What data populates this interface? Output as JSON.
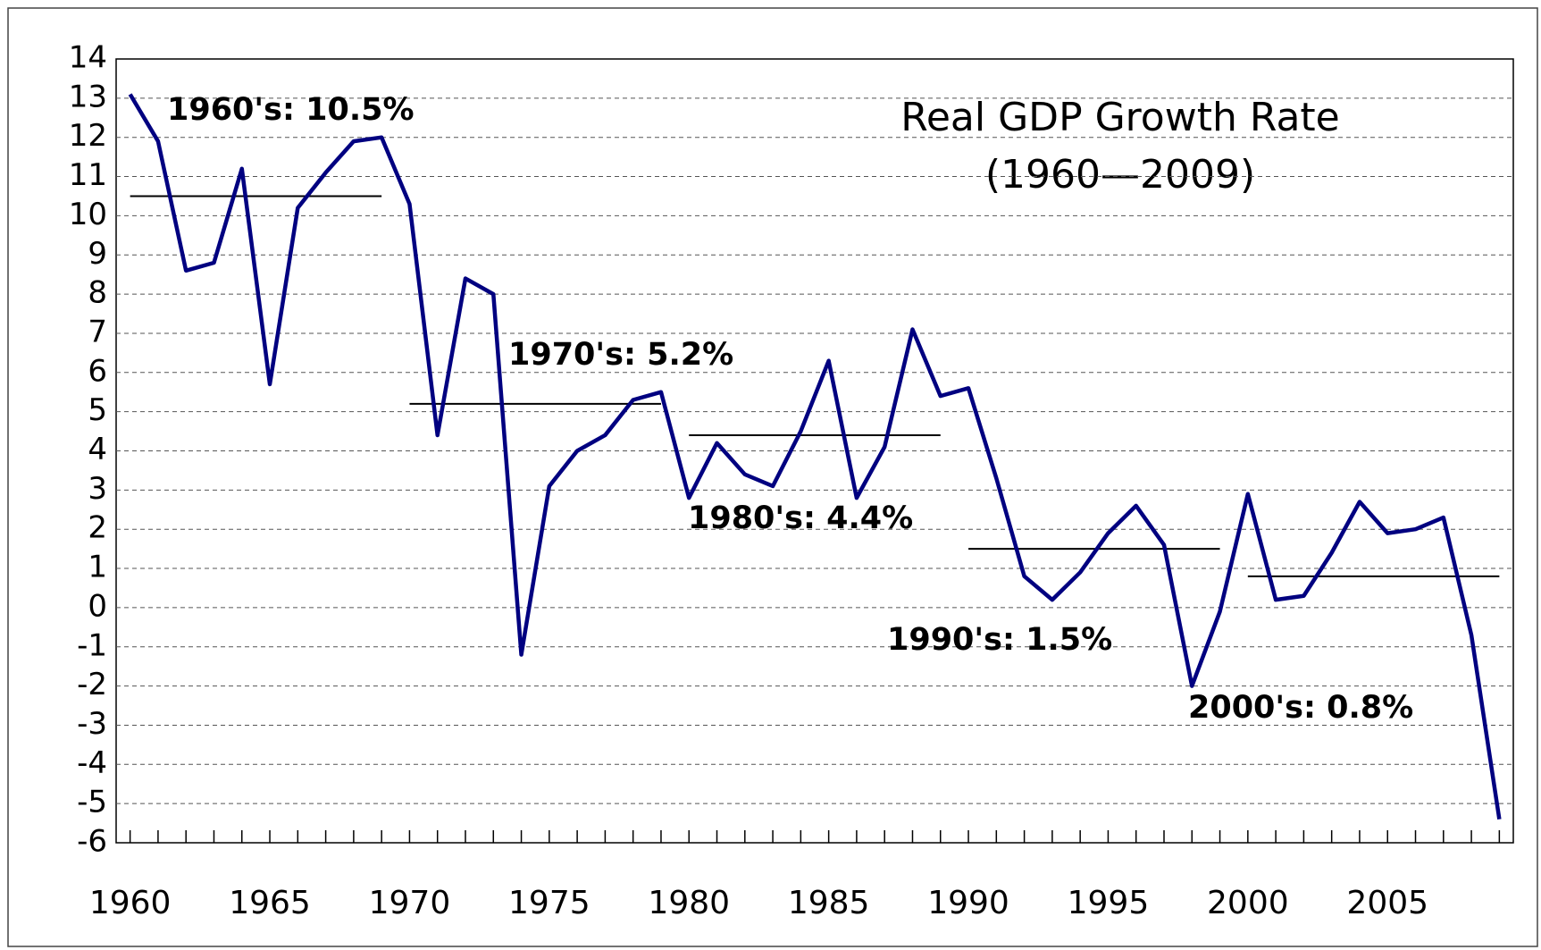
{
  "chart_data": {
    "type": "line",
    "title": "Real GDP Growth Rate",
    "subtitle": "(1960—2009)",
    "x": [
      1960,
      1961,
      1962,
      1963,
      1964,
      1965,
      1966,
      1967,
      1968,
      1969,
      1970,
      1971,
      1972,
      1973,
      1974,
      1975,
      1976,
      1977,
      1978,
      1979,
      1980,
      1981,
      1982,
      1983,
      1984,
      1985,
      1986,
      1987,
      1988,
      1989,
      1990,
      1991,
      1992,
      1993,
      1994,
      1995,
      1996,
      1997,
      1998,
      1999,
      2000,
      2001,
      2002,
      2003,
      2004,
      2005,
      2006,
      2007,
      2008,
      2009
    ],
    "series": [
      {
        "color": "#000080",
        "values": [
          13.1,
          11.9,
          8.6,
          8.8,
          11.2,
          5.7,
          10.2,
          11.1,
          11.9,
          12.0,
          10.3,
          4.4,
          8.4,
          8.0,
          -1.2,
          3.1,
          4.0,
          4.4,
          5.3,
          5.5,
          2.8,
          4.2,
          3.4,
          3.1,
          4.5,
          6.3,
          2.8,
          4.1,
          7.1,
          5.4,
          5.6,
          3.3,
          0.8,
          0.2,
          0.9,
          1.9,
          2.6,
          1.6,
          -2.0,
          -0.1,
          2.9,
          0.2,
          0.3,
          1.4,
          2.7,
          1.9,
          2.0,
          2.3,
          -0.7,
          -5.4
        ]
      }
    ],
    "decade_averages": [
      {
        "label": "1960's: 10.5%",
        "value": 10.5,
        "start": 1960,
        "end": 1969
      },
      {
        "label": "1970's: 5.2%",
        "value": 5.2,
        "start": 1970,
        "end": 1979
      },
      {
        "label": "1980's: 4.4%",
        "value": 4.4,
        "start": 1980,
        "end": 1989
      },
      {
        "label": "1990's: 1.5%",
        "value": 1.5,
        "start": 1990,
        "end": 1999
      },
      {
        "label": "2000's: 0.8%",
        "value": 0.8,
        "start": 2000,
        "end": 2009
      }
    ],
    "xlim": [
      1959.5,
      2009.5
    ],
    "xticks": [
      1960,
      1965,
      1970,
      1975,
      1980,
      1985,
      1990,
      1995,
      2000,
      2005
    ],
    "ylim": [
      -6,
      14
    ],
    "yticks": [
      -6,
      -5,
      -4,
      -3,
      -2,
      -1,
      0,
      1,
      2,
      3,
      4,
      5,
      6,
      7,
      8,
      9,
      10,
      11,
      12,
      13,
      14
    ],
    "grid": true
  }
}
